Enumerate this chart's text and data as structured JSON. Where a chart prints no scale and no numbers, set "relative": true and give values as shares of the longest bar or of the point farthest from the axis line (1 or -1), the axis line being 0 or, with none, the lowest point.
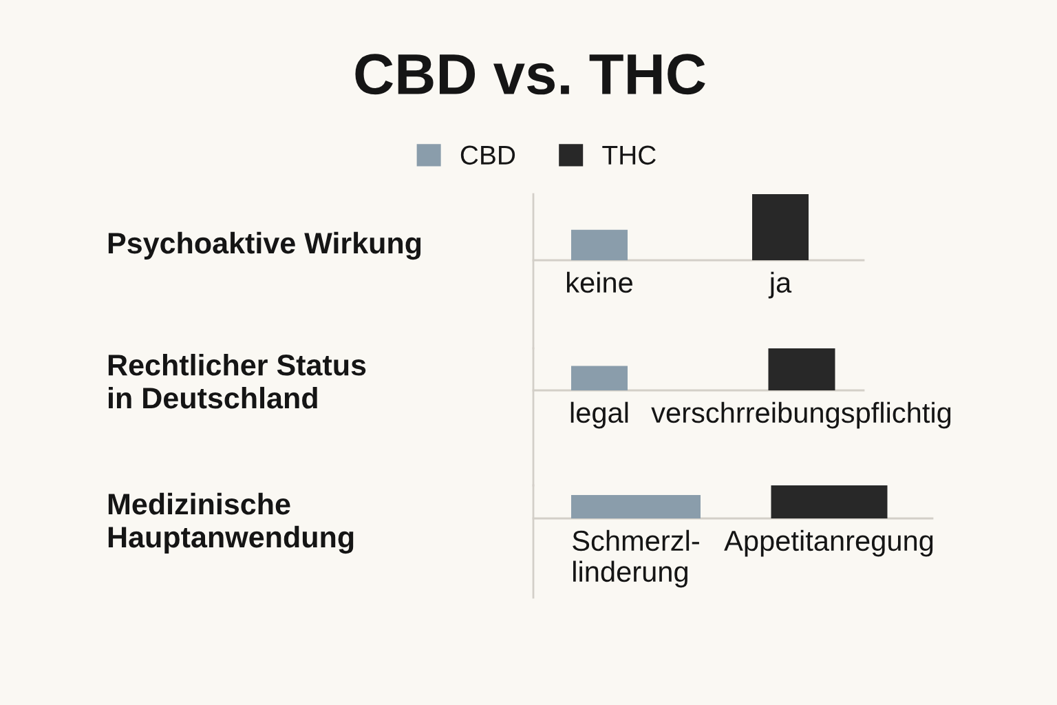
{
  "chart_data": [
    {
      "type": "bar",
      "title": "CBD vs. THC",
      "ylabel": "Psychoaktive Wirkung",
      "relative": true,
      "legend": "top",
      "categories": [
        "keine",
        "ja"
      ],
      "series": [
        {
          "name": "CBD",
          "color": "#8a9dab",
          "values": [
            0.46,
            null
          ]
        },
        {
          "name": "THC",
          "color": "#282828",
          "values": [
            null,
            1
          ]
        }
      ]
    },
    {
      "type": "bar",
      "ylabel": "Rechtlicher Status\nin Deutschland",
      "relative": true,
      "categories": [
        "legal",
        "verschrreibungspflichtig"
      ],
      "series": [
        {
          "color": "#8a9dab",
          "values": [
            0.58,
            null
          ]
        },
        {
          "color": "#282828",
          "values": [
            null,
            1
          ]
        }
      ]
    },
    {
      "type": "bar",
      "ylabel": "Medizinische\nHauptanwendung",
      "relative": true,
      "categories": [
        "Schmerzl-\nlinderung",
        "Appetitanregung"
      ],
      "series": [
        {
          "color": "#8a9dab",
          "values": [
            0.71,
            null
          ]
        },
        {
          "color": "#282828",
          "values": [
            null,
            1
          ]
        }
      ]
    }
  ]
}
